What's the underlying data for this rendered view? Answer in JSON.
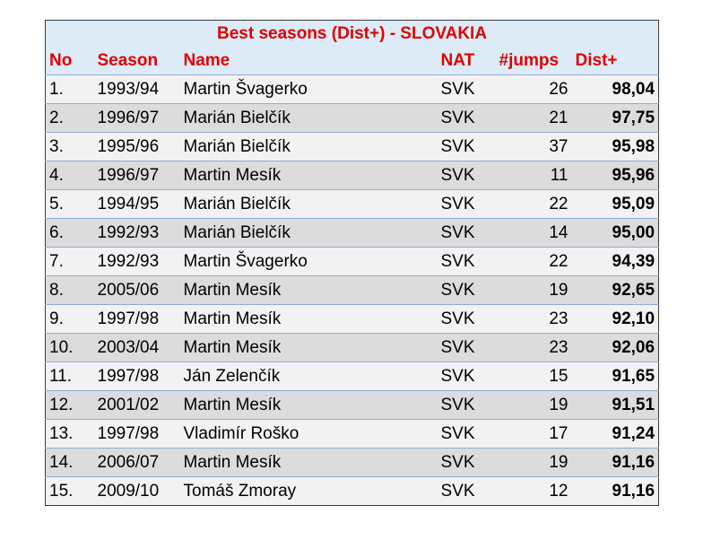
{
  "table": {
    "title": "Best seasons (Dist+) - SLOVAKIA",
    "headers": {
      "no": "No",
      "season": "Season",
      "name": "Name",
      "nat": "NAT",
      "jumps": "#jumps",
      "dist": "Dist+"
    },
    "rows": [
      {
        "no": "1.",
        "season": "1993/94",
        "name": "Martin Švagerko",
        "nat": "SVK",
        "jumps": "26",
        "dist": "98,04"
      },
      {
        "no": "2.",
        "season": "1996/97",
        "name": "Marián Bielčík",
        "nat": "SVK",
        "jumps": "21",
        "dist": "97,75"
      },
      {
        "no": "3.",
        "season": "1995/96",
        "name": "Marián Bielčík",
        "nat": "SVK",
        "jumps": "37",
        "dist": "95,98"
      },
      {
        "no": "4.",
        "season": "1996/97",
        "name": "Martin Mesík",
        "nat": "SVK",
        "jumps": "11",
        "dist": "95,96"
      },
      {
        "no": "5.",
        "season": "1994/95",
        "name": "Marián Bielčík",
        "nat": "SVK",
        "jumps": "22",
        "dist": "95,09"
      },
      {
        "no": "6.",
        "season": "1992/93",
        "name": "Marián Bielčík",
        "nat": "SVK",
        "jumps": "14",
        "dist": "95,00"
      },
      {
        "no": "7.",
        "season": "1992/93",
        "name": "Martin Švagerko",
        "nat": "SVK",
        "jumps": "22",
        "dist": "94,39"
      },
      {
        "no": "8.",
        "season": "2005/06",
        "name": "Martin Mesík",
        "nat": "SVK",
        "jumps": "19",
        "dist": "92,65"
      },
      {
        "no": "9.",
        "season": "1997/98",
        "name": "Martin Mesík",
        "nat": "SVK",
        "jumps": "23",
        "dist": "92,10"
      },
      {
        "no": "10.",
        "season": "2003/04",
        "name": "Martin Mesík",
        "nat": "SVK",
        "jumps": "23",
        "dist": "92,06"
      },
      {
        "no": "11.",
        "season": "1997/98",
        "name": "Ján Zelenčík",
        "nat": "SVK",
        "jumps": "15",
        "dist": "91,65"
      },
      {
        "no": "12.",
        "season": "2001/02",
        "name": "Martin Mesík",
        "nat": "SVK",
        "jumps": "19",
        "dist": "91,51"
      },
      {
        "no": "13.",
        "season": "1997/98",
        "name": "Vladimír Roško",
        "nat": "SVK",
        "jumps": "17",
        "dist": "91,24"
      },
      {
        "no": "14.",
        "season": "2006/07",
        "name": "Martin Mesík",
        "nat": "SVK",
        "jumps": "19",
        "dist": "91,16"
      },
      {
        "no": "15.",
        "season": "2009/10",
        "name": "Tomáš Zmoray",
        "nat": "SVK",
        "jumps": "12",
        "dist": "91,16"
      }
    ]
  },
  "colors": {
    "header_text": "#e00000",
    "header_bg": "#ddebf7",
    "row_light": "#f2f2f2",
    "row_dark": "#dcdcdc",
    "row_border": "#8eaadb"
  }
}
